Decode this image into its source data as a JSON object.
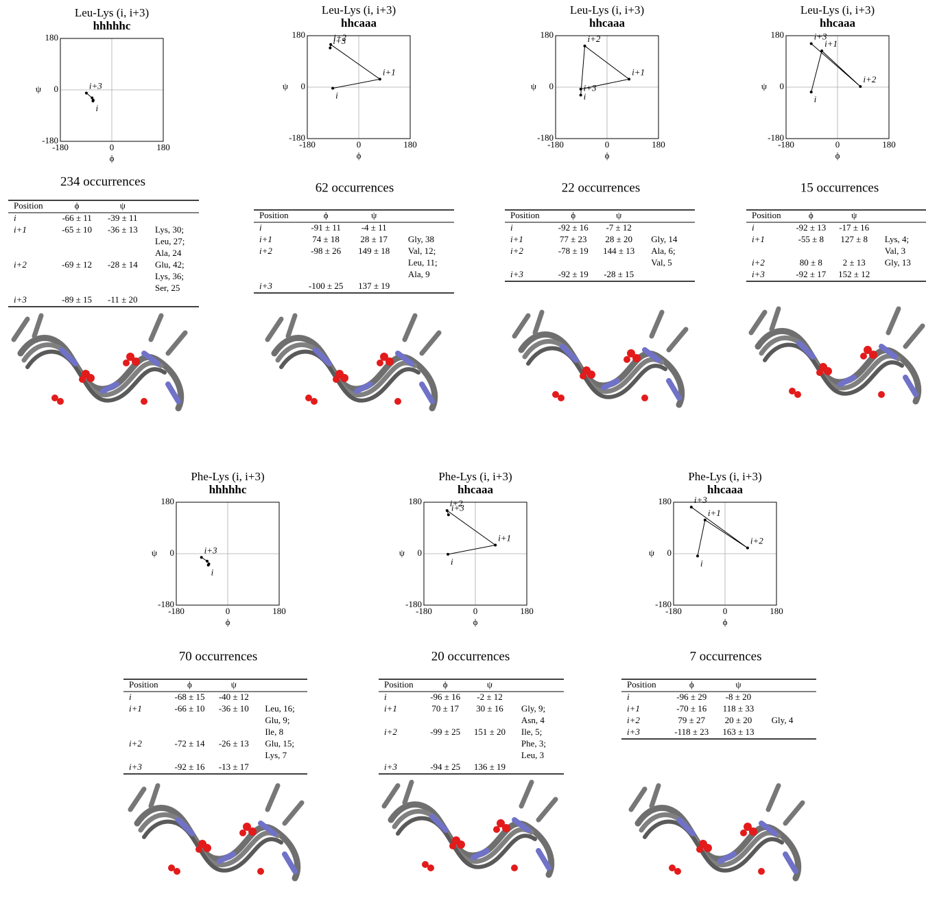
{
  "chart_data": [
    {
      "type": "line",
      "title": "Leu-Lys (i, i+3)",
      "subtitle": "hhhhhc",
      "x_label": "ϕ",
      "y_label": "ψ",
      "xlim": [
        -180,
        180
      ],
      "ylim": [
        -180,
        180
      ],
      "xticks": [
        -180,
        0,
        180
      ],
      "yticks": [
        -180,
        0,
        180
      ],
      "grid": true,
      "series": [
        {
          "color": "#000000",
          "x": [
            -66,
            -65,
            -69,
            -89
          ],
          "values": [
            -39,
            -36,
            -28,
            -11
          ],
          "point_labels": [
            "i",
            null,
            null,
            "i+3"
          ]
        }
      ]
    },
    {
      "type": "line",
      "title": "Leu-Lys (i, i+3)",
      "subtitle": "hhcaaa",
      "x_label": "ϕ",
      "y_label": "ψ",
      "xlim": [
        -180,
        180
      ],
      "ylim": [
        -180,
        180
      ],
      "xticks": [
        -180,
        0,
        180
      ],
      "yticks": [
        -180,
        0,
        180
      ],
      "grid": true,
      "series": [
        {
          "color": "#000000",
          "x": [
            -91,
            74,
            -98,
            -100
          ],
          "values": [
            -4,
            28,
            149,
            137
          ],
          "point_labels": [
            "i",
            "i+1",
            "i+2",
            "i+3"
          ]
        }
      ]
    },
    {
      "type": "line",
      "title": "Leu-Lys (i, i+3)",
      "subtitle": "hhcaaa",
      "x_label": "ϕ",
      "y_label": "ψ",
      "xlim": [
        -180,
        180
      ],
      "ylim": [
        -180,
        180
      ],
      "xticks": [
        -180,
        0,
        180
      ],
      "yticks": [
        -180,
        0,
        180
      ],
      "grid": true,
      "series": [
        {
          "color": "#000000",
          "x": [
            -92,
            77,
            -78,
            -92
          ],
          "values": [
            -7,
            28,
            144,
            -28
          ],
          "point_labels": [
            "i",
            "i+1",
            "i+2",
            "i+3"
          ]
        }
      ]
    },
    {
      "type": "line",
      "title": "Leu-Lys (i, i+3)",
      "subtitle": "hhcaaa",
      "x_label": "ϕ",
      "y_label": "ψ",
      "xlim": [
        -180,
        180
      ],
      "ylim": [
        -180,
        180
      ],
      "xticks": [
        -180,
        0,
        180
      ],
      "yticks": [
        -180,
        0,
        180
      ],
      "grid": true,
      "series": [
        {
          "color": "#000000",
          "x": [
            -92,
            -55,
            80,
            -92
          ],
          "values": [
            -17,
            127,
            2,
            152
          ],
          "point_labels": [
            "i",
            "i+1",
            "i+2",
            "i+3"
          ]
        }
      ]
    },
    {
      "type": "line",
      "title": "Phe-Lys (i, i+3)",
      "subtitle": "hhhhhc",
      "x_label": "ϕ",
      "y_label": "ψ",
      "xlim": [
        -180,
        180
      ],
      "ylim": [
        -180,
        180
      ],
      "xticks": [
        -180,
        0,
        180
      ],
      "yticks": [
        -180,
        0,
        180
      ],
      "grid": true,
      "series": [
        {
          "color": "#000000",
          "x": [
            -68,
            -66,
            -72,
            -92
          ],
          "values": [
            -40,
            -36,
            -26,
            -13
          ],
          "point_labels": [
            "i",
            null,
            null,
            "i+3"
          ]
        }
      ]
    },
    {
      "type": "line",
      "title": "Phe-Lys (i, i+3)",
      "subtitle": "hhcaaa",
      "x_label": "ϕ",
      "y_label": "ψ",
      "xlim": [
        -180,
        180
      ],
      "ylim": [
        -180,
        180
      ],
      "xticks": [
        -180,
        0,
        180
      ],
      "yticks": [
        -180,
        0,
        180
      ],
      "grid": true,
      "series": [
        {
          "color": "#000000",
          "x": [
            -96,
            70,
            -99,
            -94
          ],
          "values": [
            -2,
            30,
            151,
            136
          ],
          "point_labels": [
            "i",
            "i+1",
            "i+2",
            "i+3"
          ]
        }
      ]
    },
    {
      "type": "line",
      "title": "Phe-Lys (i, i+3)",
      "subtitle": "hhcaaa",
      "x_label": "ϕ",
      "y_label": "ψ",
      "xlim": [
        -180,
        180
      ],
      "ylim": [
        -180,
        180
      ],
      "xticks": [
        -180,
        0,
        180
      ],
      "yticks": [
        -180,
        0,
        180
      ],
      "grid": true,
      "series": [
        {
          "color": "#000000",
          "x": [
            -96,
            -70,
            79,
            -118
          ],
          "values": [
            -8,
            118,
            20,
            163
          ],
          "point_labels": [
            "i",
            "i+1",
            "i+2",
            "i+3"
          ]
        }
      ]
    }
  ],
  "tables": [
    {
      "title": "234 occurrences",
      "header": [
        "Position",
        "ϕ",
        "ψ"
      ],
      "rows": [
        {
          "position": "i",
          "phi": "-66 ± 11",
          "psi": "-39 ± 11"
        },
        {
          "position": "i+1",
          "phi": "-65 ± 10",
          "psi": "-36 ± 13",
          "residues": [
            "Lys, 30;",
            "Leu, 27;",
            "Ala, 24"
          ]
        },
        {
          "position": "i+2",
          "phi": "-69 ± 12",
          "psi": "-28 ± 14",
          "residues": [
            "Glu, 42;",
            "Lys, 36;",
            "Ser, 25"
          ]
        },
        {
          "position": "i+3",
          "phi": "-89 ± 15",
          "psi": "-11 ± 20"
        }
      ]
    },
    {
      "title": "62 occurrences",
      "header": [
        "Position",
        "ϕ",
        "ψ"
      ],
      "rows": [
        {
          "position": "i",
          "phi": "-91 ± 11",
          "psi": "-4 ± 11"
        },
        {
          "position": "i+1",
          "phi": "74 ± 18",
          "psi": "28 ± 17",
          "residues": [
            "Gly, 38"
          ]
        },
        {
          "position": "i+2",
          "phi": "-98 ± 26",
          "psi": "149 ± 18",
          "residues": [
            "Val, 12;",
            "Leu, 11;",
            "Ala, 9"
          ]
        },
        {
          "position": "i+3",
          "phi": "-100 ± 25",
          "psi": "137 ± 19"
        }
      ]
    },
    {
      "title": "22 occurrences",
      "header": [
        "Position",
        "ϕ",
        "ψ"
      ],
      "rows": [
        {
          "position": "i",
          "phi": "-92 ± 16",
          "psi": "-7 ± 12"
        },
        {
          "position": "i+1",
          "phi": "77 ± 23",
          "psi": "28 ± 20",
          "residues": [
            "Gly, 14"
          ]
        },
        {
          "position": "i+2",
          "phi": "-78 ± 19",
          "psi": "144 ± 13",
          "residues": [
            "Ala, 6;",
            "Val, 5"
          ]
        },
        {
          "position": "i+3",
          "phi": "-92 ± 19",
          "psi": "-28 ± 15"
        }
      ]
    },
    {
      "title": "15 occurrences",
      "header": [
        "Position",
        "ϕ",
        "ψ"
      ],
      "rows": [
        {
          "position": "i",
          "phi": "-92 ± 13",
          "psi": "-17 ± 16"
        },
        {
          "position": "i+1",
          "phi": "-55 ± 8",
          "psi": "127 ± 8",
          "residues": [
            "Lys, 4;",
            "Val, 3"
          ]
        },
        {
          "position": "i+2",
          "phi": "80 ± 8",
          "psi": "2 ± 13",
          "residues": [
            "Gly, 13"
          ]
        },
        {
          "position": "i+3",
          "phi": "-92 ± 17",
          "psi": "152 ± 12"
        }
      ]
    },
    {
      "title": "70 occurrences",
      "header": [
        "Position",
        "ϕ",
        "ψ"
      ],
      "rows": [
        {
          "position": "i",
          "phi": "-68 ± 15",
          "psi": "-40 ± 12"
        },
        {
          "position": "i+1",
          "phi": "-66 ± 10",
          "psi": "-36 ± 10",
          "residues": [
            "Leu, 16;",
            "Glu, 9;",
            "Ile, 8"
          ]
        },
        {
          "position": "i+2",
          "phi": "-72 ± 14",
          "psi": "-26 ± 13",
          "residues": [
            "Glu, 15;",
            "Lys, 7"
          ]
        },
        {
          "position": "i+3",
          "phi": "-92 ± 16",
          "psi": "-13 ± 17"
        }
      ]
    },
    {
      "title": "20 occurrences",
      "header": [
        "Position",
        "ϕ",
        "ψ"
      ],
      "rows": [
        {
          "position": "i",
          "phi": "-96 ± 16",
          "psi": "-2 ± 12"
        },
        {
          "position": "i+1",
          "phi": "70 ± 17",
          "psi": "30 ± 16",
          "residues": [
            "Gly, 9;",
            "Asn, 4"
          ]
        },
        {
          "position": "i+2",
          "phi": "-99 ± 25",
          "psi": "151 ± 20",
          "residues": [
            "Ile, 5;",
            "Phe, 3;",
            "Leu, 3"
          ]
        },
        {
          "position": "i+3",
          "phi": "-94 ± 25",
          "psi": "136 ± 19"
        }
      ]
    },
    {
      "title": "7 occurrences",
      "header": [
        "Position",
        "ϕ",
        "ψ"
      ],
      "rows": [
        {
          "position": "i",
          "phi": "-96 ± 29",
          "psi": "-8 ± 20"
        },
        {
          "position": "i+1",
          "phi": "-70 ± 16",
          "psi": "118 ± 33"
        },
        {
          "position": "i+2",
          "phi": "79 ± 27",
          "psi": "20 ± 20",
          "residues": [
            "Gly, 4"
          ]
        },
        {
          "position": "i+3",
          "phi": "-118 ± 23",
          "psi": "163 ± 13"
        }
      ]
    }
  ]
}
